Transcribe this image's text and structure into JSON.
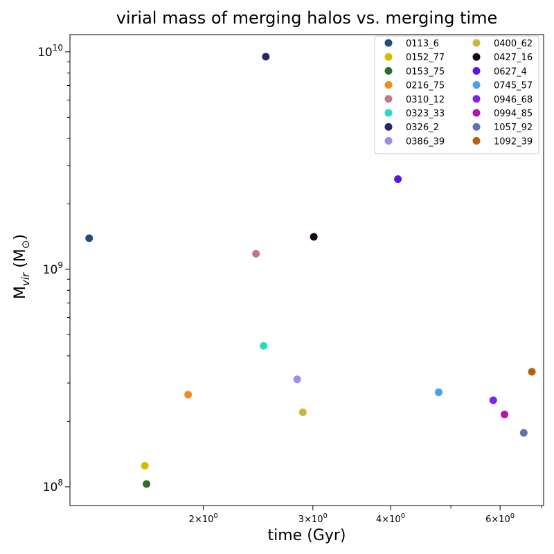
{
  "chart_data": {
    "type": "scatter",
    "title": "virial mass of merging halos vs. merging time",
    "xlabel": "time (Gyr)",
    "ylabel_main": "M",
    "ylabel_sub": "vir",
    "ylabel_unit_open": " (M",
    "ylabel_unit_sym": "⊙",
    "ylabel_unit_close": ")",
    "xscale": "log",
    "yscale": "log",
    "xlim": [
      1.22,
      7.05
    ],
    "ylim": [
      82000000.0,
      12000000000.0
    ],
    "x_ticks": [
      {
        "value": 2,
        "base": "2",
        "times": "×",
        "power": "10",
        "exp": "0"
      },
      {
        "value": 3,
        "base": "3",
        "times": "×",
        "power": "10",
        "exp": "0"
      },
      {
        "value": 4,
        "base": "4",
        "times": "×",
        "power": "10",
        "exp": "0"
      },
      {
        "value": 6,
        "base": "6",
        "times": "×",
        "power": "10",
        "exp": "0"
      }
    ],
    "x_minor_ticks": [
      5,
      7
    ],
    "y_ticks": [
      {
        "value": 100000000.0,
        "base": "10",
        "exp": "8"
      },
      {
        "value": 1000000000.0,
        "base": "10",
        "exp": "9"
      },
      {
        "value": 10000000000.0,
        "base": "10",
        "exp": "10"
      }
    ],
    "y_minor_ticks": [
      200000000.0,
      300000000.0,
      400000000.0,
      500000000.0,
      600000000.0,
      700000000.0,
      800000000.0,
      900000000.0,
      2000000000.0,
      3000000000.0,
      4000000000.0,
      5000000000.0,
      6000000000.0,
      7000000000.0,
      8000000000.0,
      9000000000.0
    ],
    "legend_position": "top-right",
    "legend_columns": 2,
    "grid": false,
    "series": [
      {
        "name": "0113_6",
        "color": "#1f4e79",
        "x": 1.31,
        "y": 1390000000.0
      },
      {
        "name": "0152_77",
        "color": "#d4bc00",
        "x": 1.61,
        "y": 125000000.0
      },
      {
        "name": "0153_75",
        "color": "#2d6e2d",
        "x": 1.62,
        "y": 103000000.0
      },
      {
        "name": "0216_75",
        "color": "#f28a1e",
        "x": 1.89,
        "y": 265000000.0
      },
      {
        "name": "0310_12",
        "color": "#c07a84",
        "x": 2.43,
        "y": 1180000000.0
      },
      {
        "name": "0323_33",
        "color": "#2ad9c1",
        "x": 2.5,
        "y": 445000000.0
      },
      {
        "name": "0326_2",
        "color": "#25276b",
        "x": 2.52,
        "y": 9500000000.0
      },
      {
        "name": "0386_39",
        "color": "#9b8ef0",
        "x": 2.83,
        "y": 312000000.0
      },
      {
        "name": "0400_62",
        "color": "#c6b83c",
        "x": 2.89,
        "y": 220000000.0
      },
      {
        "name": "0427_16",
        "color": "#150518",
        "x": 3.01,
        "y": 1410000000.0
      },
      {
        "name": "0627_4",
        "color": "#5b14e8",
        "x": 4.11,
        "y": 2600000000.0
      },
      {
        "name": "0745_57",
        "color": "#4aa0ea",
        "x": 4.78,
        "y": 272000000.0
      },
      {
        "name": "0946_68",
        "color": "#7e22f2",
        "x": 5.85,
        "y": 250000000.0
      },
      {
        "name": "0994_85",
        "color": "#b414a8",
        "x": 6.1,
        "y": 215000000.0
      },
      {
        "name": "1057_92",
        "color": "#6272ac",
        "x": 6.55,
        "y": 177000000.0
      },
      {
        "name": "1092_39",
        "color": "#b45f12",
        "x": 6.75,
        "y": 338000000.0
      }
    ]
  }
}
